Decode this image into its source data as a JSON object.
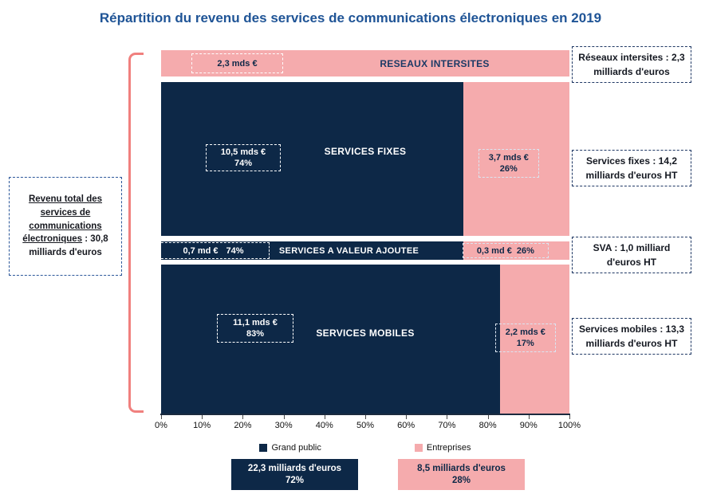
{
  "title": "Répartition du revenu des services de communications électroniques en 2019",
  "colors": {
    "navy": "#0d2847",
    "pink": "#f5abad",
    "bracket_pink": "#f0807e",
    "title_blue": "#1f5496"
  },
  "left_note": {
    "underlined": "Revenu total des services de communications électroniques",
    "rest": " : 30,8 milliards d'euros"
  },
  "chart_data": {
    "type": "bar",
    "subtype": "stacked-horizontal-mekko",
    "unit": "milliards d'euros",
    "total_label": "Revenu total des services de communications électroniques : 30,8 milliards d'euros",
    "x_axis": {
      "range": [
        0,
        100
      ],
      "tick_labels": [
        "0%",
        "10%",
        "20%",
        "30%",
        "40%",
        "50%",
        "60%",
        "70%",
        "80%",
        "90%",
        "100%"
      ]
    },
    "legend": [
      {
        "label": "Grand public",
        "color": "#0d2847"
      },
      {
        "label": "Entreprises",
        "color": "#f5abad"
      }
    ],
    "rows": [
      {
        "id": "intersites",
        "title": "RESEAUX INTERSITES",
        "total_value": 2.3,
        "note": "Réseaux intersites : 2,3 milliards d'euros",
        "segments": [
          {
            "series": "Entreprises",
            "label": "2,3 mds €",
            "pct": 100,
            "pct_label": ""
          }
        ]
      },
      {
        "id": "fixes",
        "title": "SERVICES FIXES",
        "total_value": 14.2,
        "note": "Services fixes : 14,2 milliards d'euros HT",
        "segments": [
          {
            "series": "Grand public",
            "label": "10,5 mds €",
            "pct": 74,
            "pct_label": "74%"
          },
          {
            "series": "Entreprises",
            "label": "3,7 mds €",
            "pct": 26,
            "pct_label": "26%"
          }
        ]
      },
      {
        "id": "sva",
        "title": "SERVICES A VALEUR AJOUTEE",
        "total_value": 1.0,
        "note": "SVA : 1,0 milliard d'euros HT",
        "segments": [
          {
            "series": "Grand public",
            "label": "0,7 md €",
            "pct": 74,
            "pct_label": "74%"
          },
          {
            "series": "Entreprises",
            "label": "0,3 md €",
            "pct": 26,
            "pct_label": "26%"
          }
        ]
      },
      {
        "id": "mobiles",
        "title": "SERVICES MOBILES",
        "total_value": 13.3,
        "note": "Services mobiles : 13,3 milliards d'euros HT",
        "segments": [
          {
            "series": "Grand public",
            "label": "11,1 mds €",
            "pct": 83,
            "pct_label": "83%"
          },
          {
            "series": "Entreprises",
            "label": "2,2 mds €",
            "pct": 17,
            "pct_label": "17%"
          }
        ]
      }
    ],
    "totals_by_series": [
      {
        "series": "Grand public",
        "label": "22,3 milliards d'euros",
        "pct_label": "72%"
      },
      {
        "series": "Entreprises",
        "label": "8,5 milliards d'euros",
        "pct_label": "28%"
      }
    ]
  }
}
